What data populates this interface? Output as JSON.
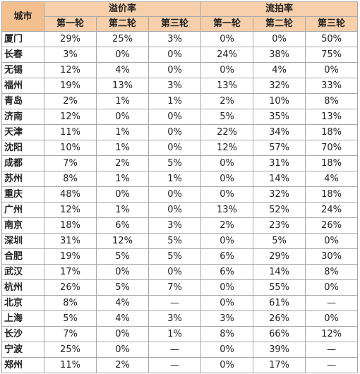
{
  "header": {
    "city": "城市",
    "premium_group": "溢价率",
    "failed_group": "流拍率",
    "rounds": [
      "第一轮",
      "第二轮",
      "第三轮",
      "第一轮",
      "第二轮",
      "第三轮"
    ]
  },
  "rows": [
    {
      "city": "厦门",
      "values": [
        "29%",
        "25%",
        "3%",
        "0%",
        "0%",
        "50%"
      ]
    },
    {
      "city": "长春",
      "values": [
        "3%",
        "0%",
        "0%",
        "24%",
        "38%",
        "75%"
      ]
    },
    {
      "city": "无锡",
      "values": [
        "12%",
        "4%",
        "0%",
        "0%",
        "4%",
        "0%"
      ]
    },
    {
      "city": "福州",
      "values": [
        "19%",
        "13%",
        "3%",
        "13%",
        "32%",
        "33%"
      ]
    },
    {
      "city": "青岛",
      "values": [
        "2%",
        "1%",
        "1%",
        "2%",
        "10%",
        "8%"
      ]
    },
    {
      "city": "济南",
      "values": [
        "12%",
        "0%",
        "0%",
        "5%",
        "35%",
        "13%"
      ]
    },
    {
      "city": "天津",
      "values": [
        "11%",
        "1%",
        "0%",
        "22%",
        "34%",
        "18%"
      ]
    },
    {
      "city": "沈阳",
      "values": [
        "10%",
        "1%",
        "0%",
        "12%",
        "57%",
        "70%"
      ]
    },
    {
      "city": "成都",
      "values": [
        "7%",
        "2%",
        "5%",
        "0%",
        "31%",
        "18%"
      ]
    },
    {
      "city": "苏州",
      "values": [
        "8%",
        "1%",
        "1%",
        "0%",
        "14%",
        "4%"
      ]
    },
    {
      "city": "重庆",
      "values": [
        "48%",
        "0%",
        "0%",
        "0%",
        "32%",
        "18%"
      ]
    },
    {
      "city": "广州",
      "values": [
        "12%",
        "1%",
        "0%",
        "13%",
        "52%",
        "24%"
      ]
    },
    {
      "city": "南京",
      "values": [
        "18%",
        "6%",
        "3%",
        "2%",
        "23%",
        "26%"
      ]
    },
    {
      "city": "深圳",
      "values": [
        "31%",
        "12%",
        "5%",
        "0%",
        "5%",
        "0%"
      ]
    },
    {
      "city": "合肥",
      "values": [
        "19%",
        "5%",
        "5%",
        "6%",
        "29%",
        "30%"
      ]
    },
    {
      "city": "武汉",
      "values": [
        "17%",
        "0%",
        "0%",
        "6%",
        "14%",
        "8%"
      ]
    },
    {
      "city": "杭州",
      "values": [
        "26%",
        "5%",
        "7%",
        "0%",
        "55%",
        "0%"
      ]
    },
    {
      "city": "北京",
      "values": [
        "8%",
        "4%",
        "—",
        "0%",
        "61%",
        "—"
      ]
    },
    {
      "city": "上海",
      "values": [
        "5%",
        "4%",
        "3%",
        "3%",
        "26%",
        "0%"
      ]
    },
    {
      "city": "长沙",
      "values": [
        "7%",
        "0%",
        "1%",
        "8%",
        "66%",
        "12%"
      ]
    },
    {
      "city": "宁波",
      "values": [
        "25%",
        "0%",
        "—",
        "0%",
        "39%",
        "—"
      ]
    },
    {
      "city": "郑州",
      "values": [
        "11%",
        "2%",
        "—",
        "0%",
        "17%",
        "—"
      ]
    }
  ]
}
